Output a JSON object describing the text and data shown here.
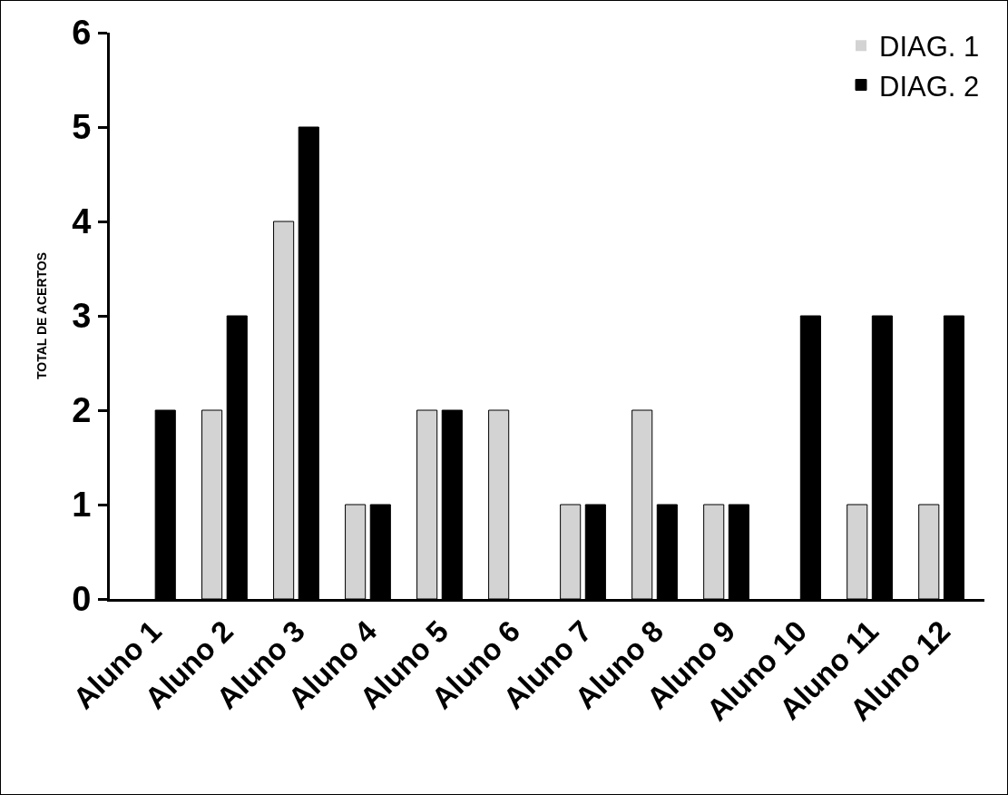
{
  "chart_data": {
    "type": "bar",
    "ylabel": "TOTAL DE ACERTOS",
    "categories": [
      "Aluno 1",
      "Aluno 2",
      "Aluno 3",
      "Aluno 4",
      "Aluno 5",
      "Aluno 6",
      "Aluno 7",
      "Aluno 8",
      "Aluno 9",
      "Aluno 10",
      "Aluno 11",
      "Aluno 12"
    ],
    "series": [
      {
        "name": "DIAG. 1",
        "color": "#d3d3d3",
        "values": [
          0,
          2,
          4,
          1,
          2,
          2,
          1,
          2,
          1,
          0,
          1,
          1
        ]
      },
      {
        "name": "DIAG. 2",
        "color": "#000000",
        "values": [
          2,
          3,
          5,
          1,
          2,
          0,
          1,
          1,
          1,
          3,
          3,
          3
        ]
      }
    ],
    "ylim": [
      0,
      6
    ],
    "yticks": [
      0,
      1,
      2,
      3,
      4,
      5,
      6
    ],
    "grid": false,
    "legend": "top right"
  }
}
